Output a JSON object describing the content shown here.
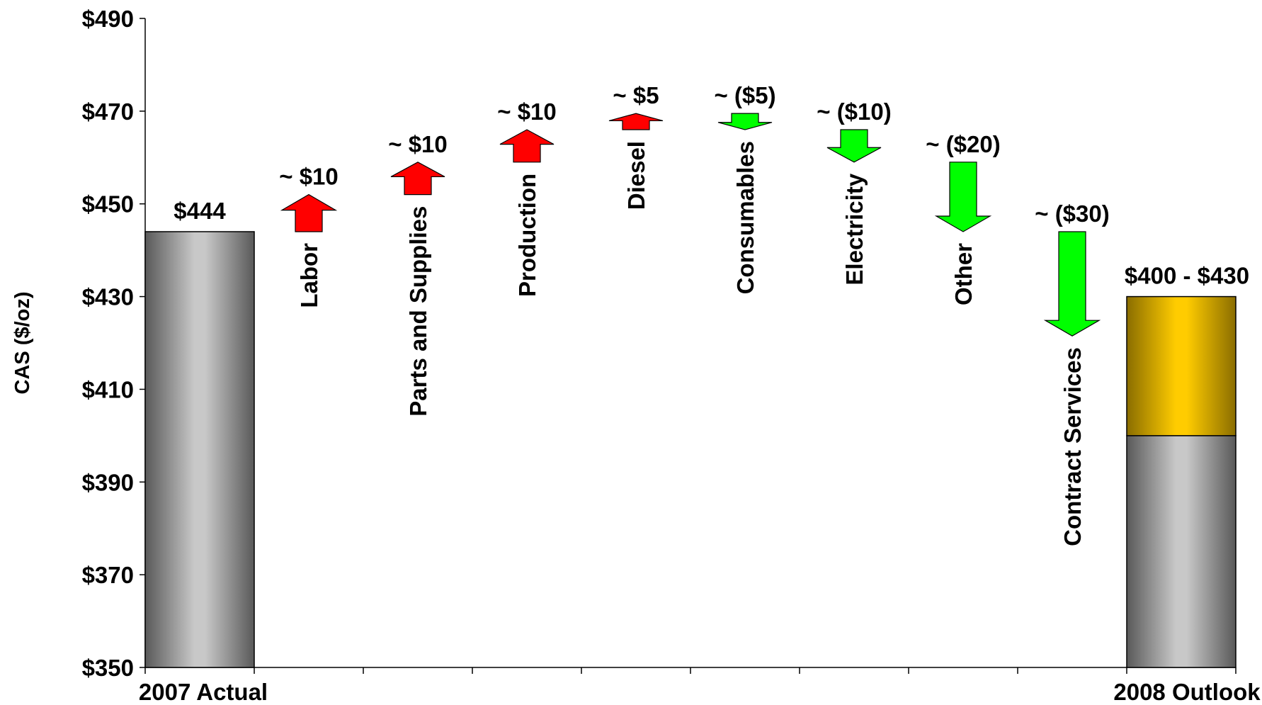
{
  "chart_data": {
    "type": "waterfall",
    "ylabel": "CAS ($/oz)",
    "ylim": [
      350,
      490
    ],
    "ytick_step": 20,
    "ytick_prefix": "$",
    "start": {
      "label": "2007 Actual",
      "value": 444,
      "value_label": "$444"
    },
    "steps": [
      {
        "category": "Labor",
        "delta": 8,
        "direction": "up",
        "value_label": "~ $10"
      },
      {
        "category": "Parts and Supplies",
        "delta": 7,
        "direction": "up",
        "value_label": "~ $10"
      },
      {
        "category": "Production",
        "delta": 7,
        "direction": "up",
        "value_label": "~ $10"
      },
      {
        "category": "Diesel",
        "delta": 3.5,
        "direction": "up",
        "value_label": "~ $5"
      },
      {
        "category": "Consumables",
        "delta": -3.5,
        "direction": "down",
        "value_label": "~ ($5)"
      },
      {
        "category": "Electricity",
        "delta": -7,
        "direction": "down",
        "value_label": "~ ($10)"
      },
      {
        "category": "Other",
        "delta": -15,
        "direction": "down",
        "value_label": "~ ($20)"
      },
      {
        "category": "Contract Services",
        "delta": -22.5,
        "direction": "down",
        "value_label": "~ ($30)"
      }
    ],
    "end": {
      "label": "2008 Outlook",
      "low": 400,
      "high": 430,
      "value_label": "$400 - $430"
    },
    "colors": {
      "increase": "#ff0000",
      "decrease": "#00ff00",
      "range": "#ffcc00",
      "bar_gray": "#bfbfbf",
      "bar_dark": "#595959"
    }
  }
}
